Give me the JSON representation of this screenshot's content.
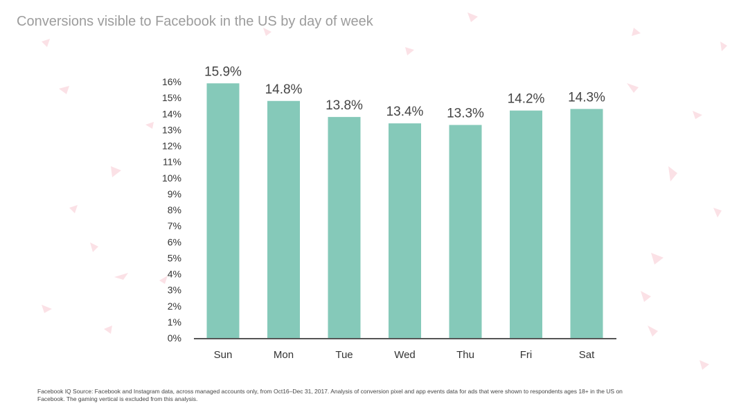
{
  "title": "Conversions visible to Facebook in the US by day of week",
  "footnote": "Facebook IQ Source: Facebook and Instagram data, across managed accounts only, from Oct16–Dec 31, 2017. Analysis of conversion pixel and app events data for ads that were shown to respondents ages 18+ in the US on Facebook. The gaming vertical is excluded from this analysis.",
  "colors": {
    "bar": "#85c9b9",
    "axis": "#555555",
    "confetti": "#fbe1e6"
  },
  "chart_data": {
    "type": "bar",
    "title": "Conversions visible to Facebook in the US by day of week",
    "categories": [
      "Sun",
      "Mon",
      "Tue",
      "Wed",
      "Thu",
      "Fri",
      "Sat"
    ],
    "values": [
      15.9,
      14.8,
      13.8,
      13.4,
      13.3,
      14.2,
      14.3
    ],
    "data_labels": [
      "15.9%",
      "14.8%",
      "13.8%",
      "13.4%",
      "13.3%",
      "14.2%",
      "14.3%"
    ],
    "ylim": [
      0,
      16
    ],
    "yticks": [
      0,
      1,
      2,
      3,
      4,
      5,
      6,
      7,
      8,
      9,
      10,
      11,
      12,
      13,
      14,
      15,
      16
    ],
    "ytick_labels": [
      "0%",
      "1%",
      "2%",
      "3%",
      "4%",
      "5%",
      "6%",
      "7%",
      "8%",
      "9%",
      "10%",
      "11%",
      "12%",
      "13%",
      "14%",
      "15%",
      "16%"
    ],
    "xlabel": "",
    "ylabel": "",
    "grid": false,
    "legend": "none"
  }
}
